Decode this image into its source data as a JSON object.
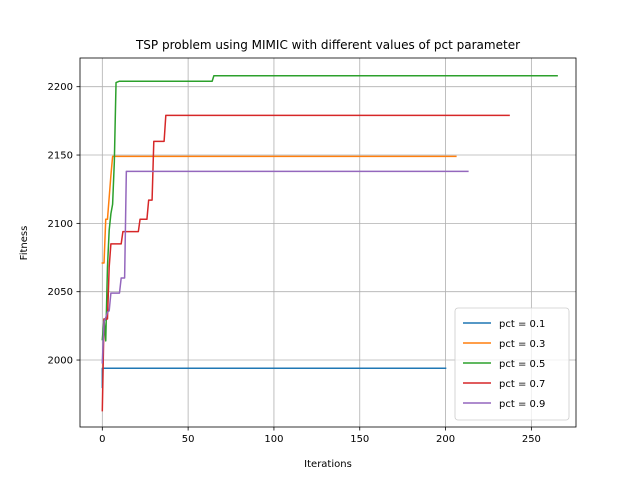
{
  "chart_data": {
    "type": "line",
    "title": "TSP problem using MIMIC with different values of pct parameter",
    "xlabel": "Iterations",
    "ylabel": "Fitness",
    "xlim": [
      -13,
      276
    ],
    "ylim": [
      1951,
      2221
    ],
    "xticks": [
      0,
      50,
      100,
      150,
      200,
      250
    ],
    "yticks": [
      2000,
      2050,
      2100,
      2150,
      2200
    ],
    "grid": true,
    "legend_position": "lower-right",
    "series": [
      {
        "name": "pct = 0.1",
        "color": "#1f77b4",
        "points": [
          [
            0,
            1980
          ],
          [
            0,
            1994
          ],
          [
            200,
            1994
          ]
        ]
      },
      {
        "name": "pct = 0.3",
        "color": "#ff7f0e",
        "points": [
          [
            0,
            2071
          ],
          [
            1,
            2071
          ],
          [
            2,
            2103
          ],
          [
            3,
            2103
          ],
          [
            5,
            2135
          ],
          [
            6,
            2149
          ],
          [
            206,
            2149
          ]
        ]
      },
      {
        "name": "pct = 0.5",
        "color": "#2ca02c",
        "points": [
          [
            0,
            2015
          ],
          [
            1,
            2030
          ],
          [
            2,
            2014
          ],
          [
            3,
            2068
          ],
          [
            4,
            2095
          ],
          [
            5,
            2107
          ],
          [
            6,
            2114
          ],
          [
            7,
            2145
          ],
          [
            8,
            2203
          ],
          [
            10,
            2204
          ],
          [
            64,
            2204
          ],
          [
            65,
            2208
          ],
          [
            265,
            2208
          ]
        ]
      },
      {
        "name": "pct = 0.7",
        "color": "#d62728",
        "points": [
          [
            0,
            1963
          ],
          [
            1,
            2030
          ],
          [
            3,
            2030
          ],
          [
            4,
            2068
          ],
          [
            5,
            2085
          ],
          [
            11,
            2085
          ],
          [
            12,
            2094
          ],
          [
            21,
            2094
          ],
          [
            22,
            2103
          ],
          [
            26,
            2103
          ],
          [
            27,
            2117
          ],
          [
            29,
            2117
          ],
          [
            30,
            2160
          ],
          [
            36,
            2160
          ],
          [
            37,
            2179
          ],
          [
            237,
            2179
          ]
        ]
      },
      {
        "name": "pct = 0.9",
        "color": "#9467bd",
        "points": [
          [
            0,
            1998
          ],
          [
            1,
            2028
          ],
          [
            2,
            2031
          ],
          [
            3,
            2035
          ],
          [
            4,
            2036
          ],
          [
            5,
            2049
          ],
          [
            10,
            2049
          ],
          [
            11,
            2060
          ],
          [
            13,
            2060
          ],
          [
            14,
            2138
          ],
          [
            213,
            2138
          ]
        ]
      }
    ]
  }
}
